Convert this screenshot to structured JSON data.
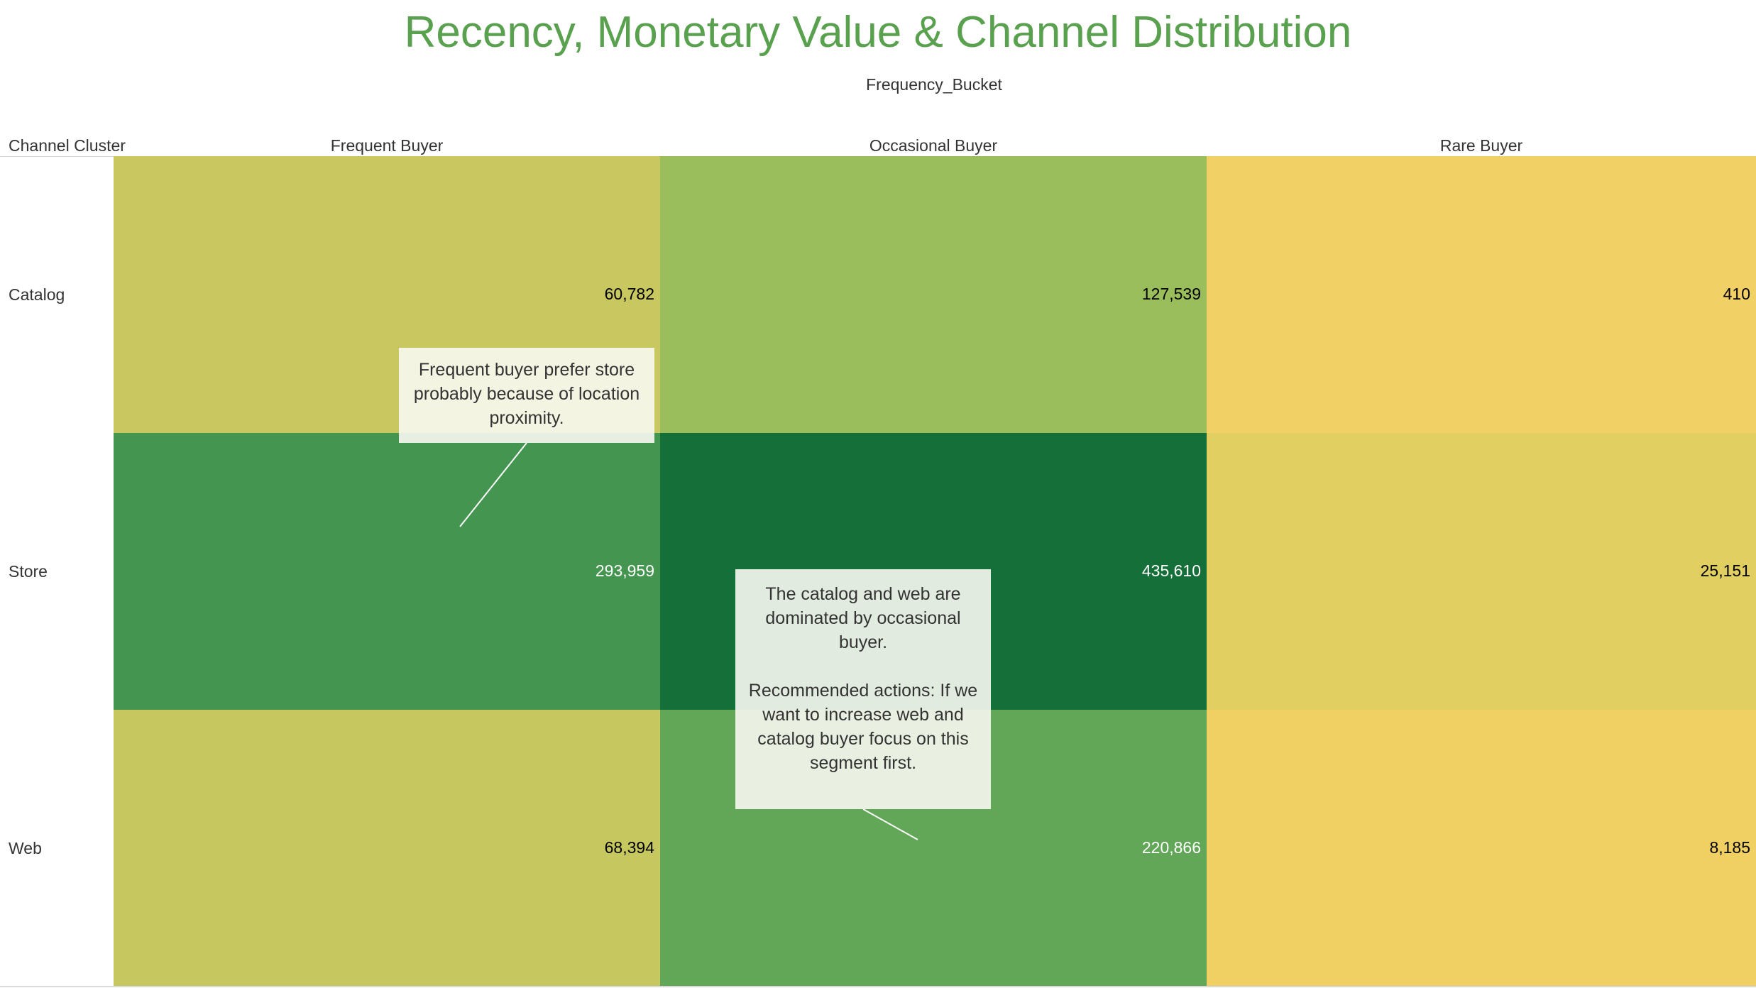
{
  "chart_data": {
    "type": "heatmap",
    "title": "Recency, Monetary Value & Channel Distribution",
    "column_dimension": "Frequency_Bucket",
    "row_dimension": "Channel Cluster",
    "columns": [
      "Frequent Buyer",
      "Occasional Buyer",
      "Rare Buyer"
    ],
    "rows": [
      "Catalog",
      "Store",
      "Web"
    ],
    "values": [
      [
        60782,
        127539,
        410
      ],
      [
        293959,
        435610,
        25151
      ],
      [
        68394,
        220866,
        8185
      ]
    ],
    "value_labels": [
      [
        "60,782",
        "127,539",
        "410"
      ],
      [
        "293,959",
        "435,610",
        "25,151"
      ],
      [
        "68,394",
        "220,866",
        "8,185"
      ]
    ],
    "cell_colors": [
      [
        "#c9c860",
        "#9bbe5c",
        "#f1d165"
      ],
      [
        "#43954f",
        "#146f39",
        "#e1cf62"
      ],
      [
        "#c6c85f",
        "#61a757",
        "#f0d063"
      ]
    ],
    "text_colors": [
      [
        "#000000",
        "#000000",
        "#000000"
      ],
      [
        "#ffffff",
        "#ffffff",
        "#000000"
      ],
      [
        "#000000",
        "#ffffff",
        "#000000"
      ]
    ],
    "color_scheme": "yellow-to-green sequential",
    "annotations": [
      {
        "text": "Frequent buyer prefer store probably because of location proximity."
      },
      {
        "text": "The catalog and web are dominated by occasional buyer.\n\nRecommended actions: If we want to increase web and catalog buyer focus on this segment first."
      }
    ]
  }
}
